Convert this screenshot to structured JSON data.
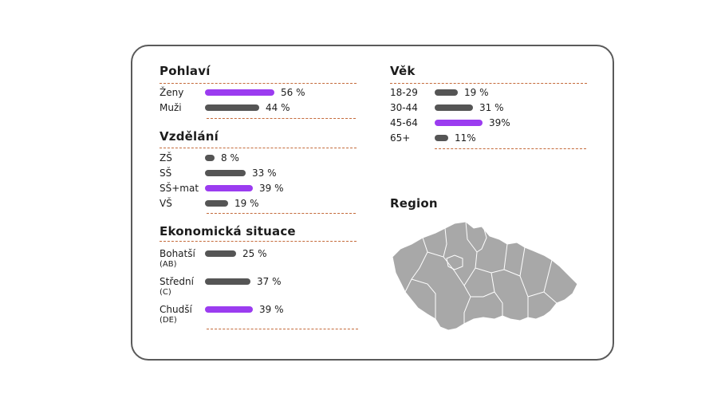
{
  "colors": {
    "highlight": "#9b3cf0",
    "normal": "#555555",
    "rule": "#c46a3a",
    "map_fill": "#a8a8a8"
  },
  "chart_data": [
    {
      "type": "bar",
      "title": "Pohlaví",
      "categories": [
        "Ženy",
        "Muži"
      ],
      "values": [
        56,
        44
      ],
      "value_labels": [
        "56 %",
        "44 %"
      ],
      "highlight": [
        true,
        false
      ]
    },
    {
      "type": "bar",
      "title": "Vzdělání",
      "categories": [
        "ZŠ",
        "SŠ",
        "SŠ+mat",
        "VŠ"
      ],
      "values": [
        8,
        33,
        39,
        19
      ],
      "value_labels": [
        "8 %",
        "33 %",
        "39 %",
        "19 %"
      ],
      "highlight": [
        false,
        false,
        true,
        false
      ]
    },
    {
      "type": "bar",
      "title": "Ekonomická situace",
      "categories": [
        "Bohatší",
        "Střední",
        "Chudší"
      ],
      "subcategories": [
        "(AB)",
        "(C)",
        "(DE)"
      ],
      "values": [
        25,
        37,
        39
      ],
      "value_labels": [
        "25 %",
        "37 %",
        "39 %"
      ],
      "highlight": [
        false,
        false,
        true
      ]
    },
    {
      "type": "bar",
      "title": "Věk",
      "categories": [
        "18-29",
        "30-44",
        "45-64",
        "65+"
      ],
      "values": [
        19,
        31,
        39,
        11
      ],
      "value_labels": [
        "19 %",
        "31 %",
        "39%",
        "11%"
      ],
      "highlight": [
        false,
        false,
        true,
        false
      ]
    }
  ],
  "region": {
    "title": "Region",
    "map_icon": "czech-regions-map"
  }
}
